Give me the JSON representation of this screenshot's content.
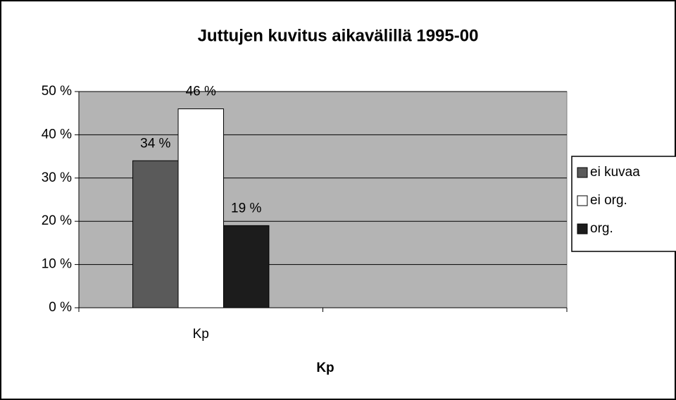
{
  "chart_data": {
    "type": "bar",
    "title": "Juttujen kuvitus aikavälillä 1995-00",
    "x_label": "Kp",
    "categories": [
      "Kp",
      null
    ],
    "series": [
      {
        "name": "ei kuvaa",
        "color": "#5a5a5a",
        "values": [
          34,
          null
        ],
        "value_labels": [
          "34 %",
          null
        ]
      },
      {
        "name": "ei org.",
        "color": "#ffffff",
        "values": [
          46,
          null
        ],
        "value_labels": [
          "46 %",
          null
        ]
      },
      {
        "name": "org.",
        "color": "#1c1c1c",
        "values": [
          19,
          null
        ],
        "value_labels": [
          "19 %",
          null
        ]
      }
    ],
    "ylim": [
      0,
      50
    ],
    "yticks": [
      {
        "value": 0,
        "label": "0 %"
      },
      {
        "value": 10,
        "label": "10 %"
      },
      {
        "value": 20,
        "label": "20 %"
      },
      {
        "value": 30,
        "label": "30 %"
      },
      {
        "value": 40,
        "label": "40 %"
      },
      {
        "value": 50,
        "label": "50 %"
      }
    ],
    "grid": true,
    "legend": "right"
  }
}
